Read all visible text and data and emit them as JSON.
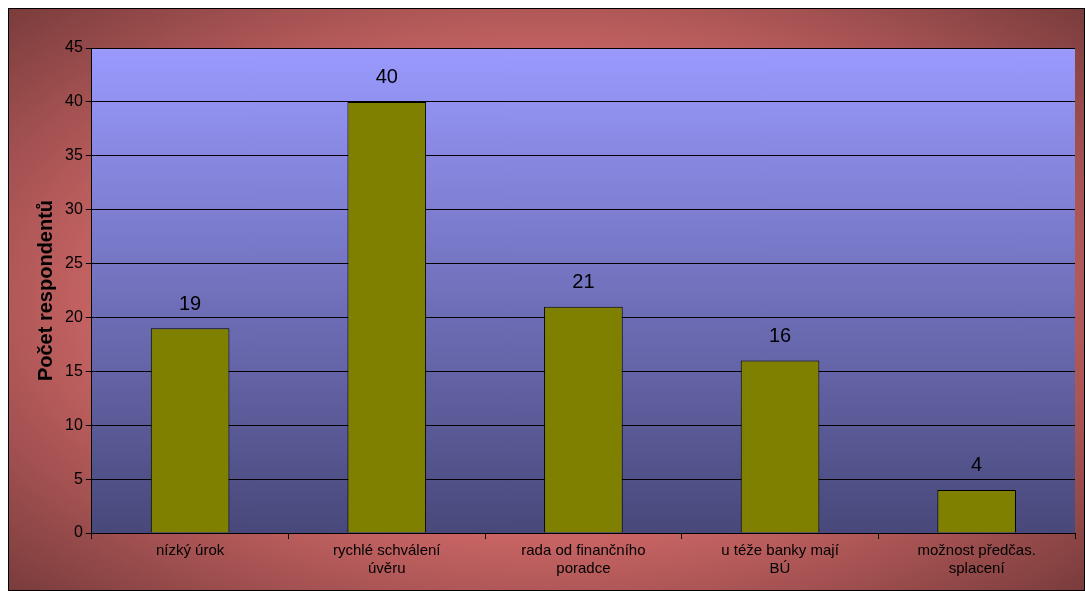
{
  "chart_data": {
    "type": "bar",
    "ylabel": "Počet respondentů",
    "categories": [
      "nízký úrok",
      "rychlé schválení úvěru",
      "rada od finančního poradce",
      "u téže banky mají BÚ",
      "možnost předčas. splacení"
    ],
    "values": [
      19,
      40,
      21,
      16,
      4
    ],
    "color": "#808000",
    "ylim": [
      0,
      45
    ],
    "yticks": [
      0,
      5,
      10,
      15,
      20,
      25,
      30,
      35,
      40,
      45
    ],
    "grid": "y",
    "data_labels": true,
    "legend": false
  }
}
